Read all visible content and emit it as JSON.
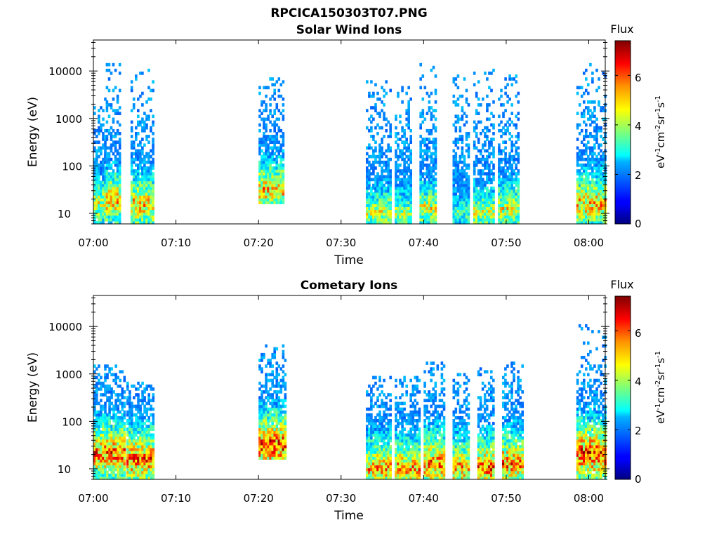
{
  "figure": {
    "title": "RPCICA150303T07.PNG"
  },
  "chart_data": [
    {
      "type": "heatmap",
      "title": "Solar Wind Ions",
      "xlabel": "Time",
      "ylabel": "Energy (eV)",
      "x_ticks": [
        "07:00",
        "07:10",
        "07:20",
        "07:30",
        "07:40",
        "07:50",
        "08:00"
      ],
      "xlim": [
        "07:00",
        "08:02"
      ],
      "y_scale": "log",
      "y_ticks": [
        10,
        100,
        1000,
        10000
      ],
      "ylim": [
        6,
        45000
      ],
      "colorbar": {
        "title": "Flux",
        "label": "eV-1cm-2sr-1s-1",
        "ticks": [
          0,
          2,
          4,
          6
        ],
        "range": [
          0,
          7.4
        ],
        "colormap": "jet"
      },
      "bursts": [
        {
          "start_min": 0.0,
          "end_min": 1.5,
          "e_low": 6,
          "e_high": 2600,
          "peak_flux": 5.0,
          "core_energy": 15
        },
        {
          "start_min": 1.5,
          "end_min": 3.3,
          "e_low": 6,
          "e_high": 13000,
          "peak_flux": 5.8,
          "core_energy": 18
        },
        {
          "start_min": 4.5,
          "end_min": 7.2,
          "e_low": 6,
          "e_high": 11000,
          "peak_flux": 5.8,
          "core_energy": 15
        },
        {
          "start_min": 20.0,
          "end_min": 23.0,
          "e_low": 15,
          "e_high": 6500,
          "peak_flux": 5.8,
          "core_energy": 30
        },
        {
          "start_min": 33.0,
          "end_min": 36.0,
          "e_low": 6,
          "e_high": 6000,
          "peak_flux": 4.8,
          "core_energy": 10
        },
        {
          "start_min": 36.5,
          "end_min": 38.5,
          "e_low": 6,
          "e_high": 5000,
          "peak_flux": 4.5,
          "core_energy": 10
        },
        {
          "start_min": 39.5,
          "end_min": 41.5,
          "e_low": 6,
          "e_high": 14000,
          "peak_flux": 5.0,
          "core_energy": 12
        },
        {
          "start_min": 43.5,
          "end_min": 45.5,
          "e_low": 6,
          "e_high": 8000,
          "peak_flux": 3.8,
          "core_energy": 10
        },
        {
          "start_min": 46.0,
          "end_min": 48.5,
          "e_low": 6,
          "e_high": 11000,
          "peak_flux": 4.8,
          "core_energy": 10
        },
        {
          "start_min": 49.0,
          "end_min": 51.5,
          "e_low": 6,
          "e_high": 8000,
          "peak_flux": 5.0,
          "core_energy": 12
        },
        {
          "start_min": 58.5,
          "end_min": 62.0,
          "e_low": 6,
          "e_high": 14000,
          "peak_flux": 5.8,
          "core_energy": 15
        }
      ]
    },
    {
      "type": "heatmap",
      "title": "Cometary Ions",
      "xlabel": "Time",
      "ylabel": "Energy (eV)",
      "x_ticks": [
        "07:00",
        "07:10",
        "07:20",
        "07:30",
        "07:40",
        "07:50",
        "08:00"
      ],
      "xlim": [
        "07:00",
        "08:02"
      ],
      "y_scale": "log",
      "y_ticks": [
        10,
        100,
        1000,
        10000
      ],
      "ylim": [
        6,
        45000
      ],
      "colorbar": {
        "title": "Flux",
        "label": "eV-1cm-2sr-1s-1",
        "ticks": [
          0,
          2,
          4,
          6
        ],
        "range": [
          0,
          7.4
        ],
        "colormap": "jet"
      },
      "bursts": [
        {
          "start_min": 0.0,
          "end_min": 3.8,
          "e_low": 6,
          "e_high": 1500,
          "peak_flux": 6.5,
          "core_energy": 20
        },
        {
          "start_min": 4.0,
          "end_min": 7.2,
          "e_low": 6,
          "e_high": 600,
          "peak_flux": 6.5,
          "core_energy": 15
        },
        {
          "start_min": 20.0,
          "end_min": 23.2,
          "e_low": 15,
          "e_high": 4000,
          "peak_flux": 7.0,
          "core_energy": 30
        },
        {
          "start_min": 33.0,
          "end_min": 36.0,
          "e_low": 6,
          "e_high": 900,
          "peak_flux": 6.0,
          "core_energy": 10
        },
        {
          "start_min": 36.5,
          "end_min": 39.5,
          "e_low": 6,
          "e_high": 900,
          "peak_flux": 6.0,
          "core_energy": 10
        },
        {
          "start_min": 40.0,
          "end_min": 42.5,
          "e_low": 6,
          "e_high": 1800,
          "peak_flux": 6.5,
          "core_energy": 12
        },
        {
          "start_min": 43.5,
          "end_min": 45.5,
          "e_low": 6,
          "e_high": 1000,
          "peak_flux": 6.0,
          "core_energy": 10
        },
        {
          "start_min": 46.5,
          "end_min": 48.5,
          "e_low": 6,
          "e_high": 1200,
          "peak_flux": 6.5,
          "core_energy": 10
        },
        {
          "start_min": 49.5,
          "end_min": 52.0,
          "e_low": 6,
          "e_high": 1800,
          "peak_flux": 6.5,
          "core_energy": 12
        },
        {
          "start_min": 58.5,
          "end_min": 62.0,
          "e_low": 6,
          "e_high": 10000,
          "peak_flux": 7.0,
          "core_energy": 20
        }
      ]
    }
  ]
}
